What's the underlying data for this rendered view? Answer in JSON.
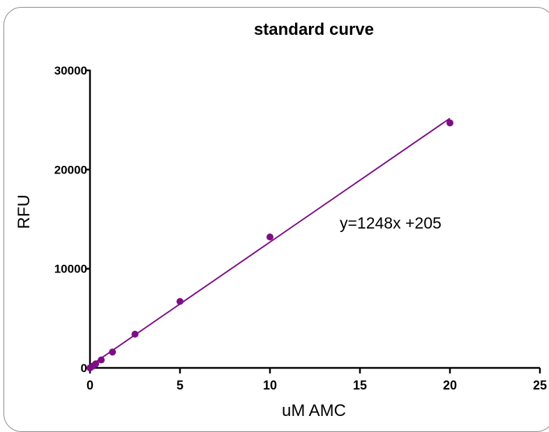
{
  "chart_data": {
    "type": "scatter",
    "title": "standard curve",
    "xlabel": "uM AMC",
    "ylabel": "RFU",
    "xlim": [
      0,
      25
    ],
    "ylim": [
      0,
      30000
    ],
    "x_ticks": [
      "0",
      "5",
      "10",
      "15",
      "20",
      "25"
    ],
    "y_ticks": [
      "0",
      "10000",
      "20000",
      "30000"
    ],
    "grid": false,
    "series": [
      {
        "color": "#7d0e85",
        "points": [
          {
            "x": 0,
            "y": 0
          },
          {
            "x": 0.15625,
            "y": 180
          },
          {
            "x": 0.3125,
            "y": 400
          },
          {
            "x": 0.625,
            "y": 800
          },
          {
            "x": 1.25,
            "y": 1600
          },
          {
            "x": 2.5,
            "y": 3400
          },
          {
            "x": 5,
            "y": 6700
          },
          {
            "x": 10,
            "y": 13200
          },
          {
            "x": 20,
            "y": 24700
          }
        ]
      }
    ],
    "fit": {
      "slope": 1248,
      "intercept": 205,
      "x_range": [
        0,
        20
      ],
      "color": "#7d0e85"
    },
    "annotation": "y=1248x +205"
  }
}
